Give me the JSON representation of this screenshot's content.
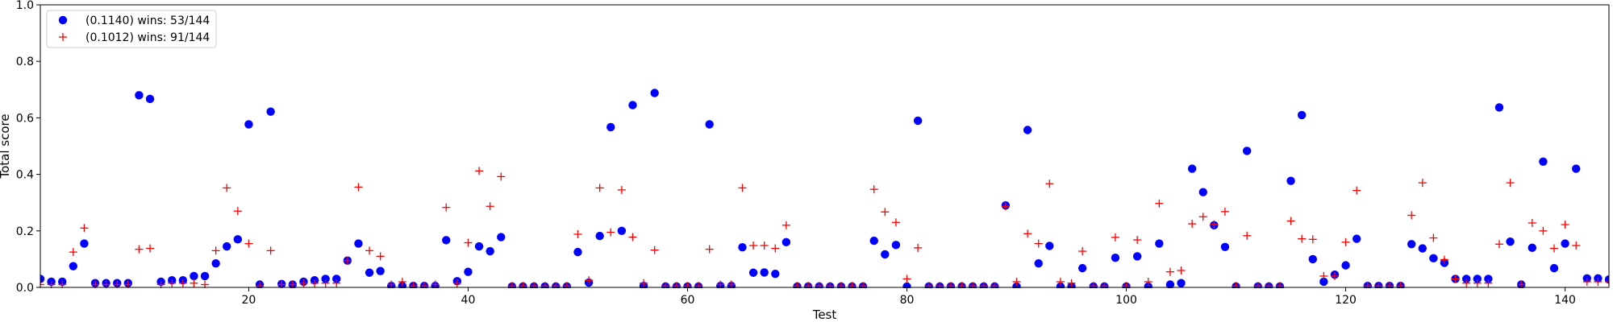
{
  "chart_data": {
    "type": "scatter",
    "title": "",
    "xlabel": "Test",
    "ylabel": "Total score",
    "xlim": [
      1,
      144
    ],
    "ylim": [
      0,
      1.0
    ],
    "xticks": [
      20,
      40,
      60,
      80,
      100,
      120,
      140
    ],
    "xtick_labels": [
      "20",
      "40",
      "60",
      "80",
      "100",
      "120",
      "140"
    ],
    "yticks": [
      0.0,
      0.2,
      0.4,
      0.6,
      0.8,
      1.0
    ],
    "ytick_labels": [
      "0.0",
      "0.2",
      "0.4",
      "0.6",
      "0.8",
      "1.0"
    ],
    "grid": false,
    "legend_position": "top-left",
    "series": [
      {
        "name": "(0.1140) wins: 53/144",
        "marker": "circle",
        "color": "#0000ff",
        "values": [
          0.03,
          0.02,
          0.02,
          0.075,
          0.155,
          0.015,
          0.015,
          0.015,
          0.015,
          0.68,
          0.667,
          0.02,
          0.025,
          0.025,
          0.04,
          0.04,
          0.085,
          0.145,
          0.17,
          0.577,
          0.01,
          0.622,
          0.012,
          0.01,
          0.02,
          0.025,
          0.03,
          0.03,
          0.095,
          0.155,
          0.052,
          0.058,
          0.005,
          0.005,
          0.005,
          0.005,
          0.005,
          0.167,
          0.022,
          0.055,
          0.145,
          0.128,
          0.178,
          0.003,
          0.003,
          0.003,
          0.003,
          0.003,
          0.003,
          0.125,
          0.017,
          0.182,
          0.567,
          0.2,
          0.645,
          0.005,
          0.688,
          0.003,
          0.003,
          0.003,
          0.003,
          0.577,
          0.005,
          0.005,
          0.142,
          0.052,
          0.053,
          0.048,
          0.16,
          0.003,
          0.003,
          0.003,
          0.003,
          0.003,
          0.003,
          0.003,
          0.165,
          0.117,
          0.15,
          0.003,
          0.59,
          0.003,
          0.003,
          0.003,
          0.003,
          0.003,
          0.003,
          0.003,
          0.29,
          0.003,
          0.557,
          0.085,
          0.147,
          0.003,
          0.003,
          0.068,
          0.003,
          0.003,
          0.105,
          0.003,
          0.11,
          0.003,
          0.155,
          0.01,
          0.015,
          0.42,
          0.337,
          0.22,
          0.143,
          0.003,
          0.483,
          0.003,
          0.003,
          0.003,
          0.377,
          0.61,
          0.1,
          0.02,
          0.045,
          0.078,
          0.172,
          0.005,
          0.005,
          0.005,
          0.005,
          0.153,
          0.138,
          0.103,
          0.087,
          0.03,
          0.03,
          0.03,
          0.03,
          0.637,
          0.162,
          0.01,
          0.14,
          0.445,
          0.068,
          0.155,
          0.42,
          0.032,
          0.032,
          0.028
        ]
      },
      {
        "name": "(0.1012) wins: 91/144",
        "marker": "plus",
        "color": "#ff0000",
        "values": [
          0.01,
          0.01,
          0.01,
          0.125,
          0.21,
          0.01,
          0.01,
          0.01,
          0.01,
          0.135,
          0.138,
          0.01,
          0.015,
          0.015,
          0.015,
          0.01,
          0.13,
          0.352,
          0.27,
          0.155,
          0.005,
          0.13,
          0.01,
          0.01,
          0.015,
          0.015,
          0.015,
          0.015,
          0.095,
          0.355,
          0.13,
          0.11,
          0.01,
          0.02,
          0.005,
          0.005,
          0.01,
          0.283,
          0.015,
          0.158,
          0.412,
          0.287,
          0.392,
          0.005,
          0.005,
          0.005,
          0.005,
          0.005,
          0.005,
          0.188,
          0.025,
          0.352,
          0.195,
          0.345,
          0.178,
          0.015,
          0.132,
          0.005,
          0.005,
          0.005,
          0.005,
          0.135,
          0.01,
          0.01,
          0.352,
          0.148,
          0.148,
          0.138,
          0.22,
          0.005,
          0.005,
          0.005,
          0.005,
          0.005,
          0.005,
          0.005,
          0.347,
          0.267,
          0.23,
          0.03,
          0.14,
          0.005,
          0.005,
          0.005,
          0.005,
          0.005,
          0.005,
          0.005,
          0.287,
          0.02,
          0.19,
          0.155,
          0.367,
          0.02,
          0.015,
          0.128,
          0.005,
          0.005,
          0.177,
          0.005,
          0.168,
          0.02,
          0.297,
          0.055,
          0.06,
          0.225,
          0.25,
          0.223,
          0.268,
          0.005,
          0.183,
          0.005,
          0.005,
          0.005,
          0.235,
          0.172,
          0.17,
          0.04,
          0.04,
          0.16,
          0.343,
          0.005,
          0.005,
          0.005,
          0.005,
          0.255,
          0.37,
          0.175,
          0.098,
          0.03,
          0.015,
          0.015,
          0.015,
          0.153,
          0.37,
          0.01,
          0.228,
          0.2,
          0.138,
          0.222,
          0.148,
          0.02,
          0.02,
          0.02
        ]
      }
    ]
  }
}
